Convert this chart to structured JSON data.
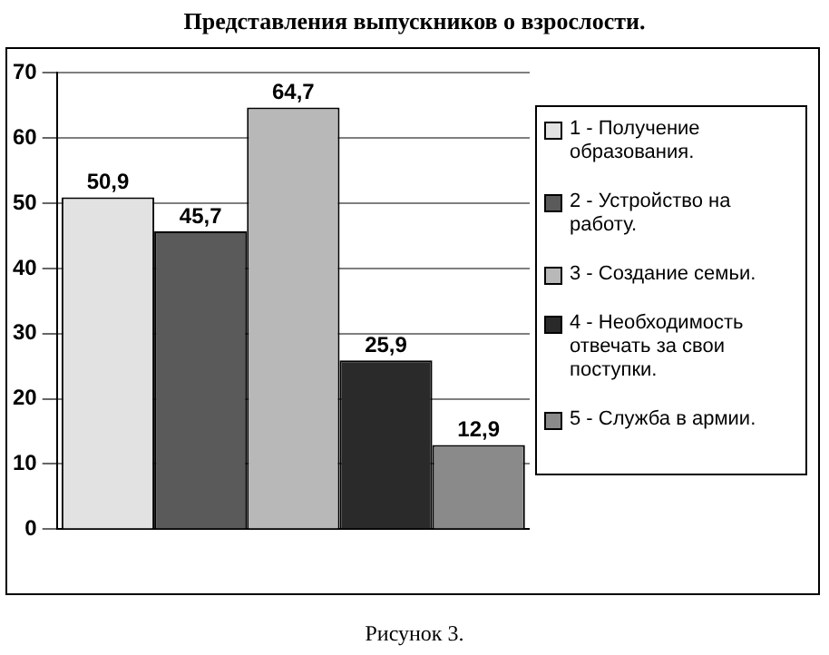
{
  "chart_data": {
    "type": "bar",
    "title": "Представления выпускников о взрослости.",
    "categories": [
      null
    ],
    "series": [
      {
        "name": "1 - Получение образования.",
        "color": "#e2e2e2",
        "values": [
          50.9
        ],
        "value_labels": [
          "50,9"
        ]
      },
      {
        "name": "2 - Устройство на работу.",
        "color": "#5a5a5a",
        "values": [
          45.7
        ],
        "value_labels": [
          "45,7"
        ]
      },
      {
        "name": "3 - Создание семьи.",
        "color": "#b8b8b8",
        "values": [
          64.7
        ],
        "value_labels": [
          "64,7"
        ]
      },
      {
        "name": "4 - Необходимость отвечать за свои поступки.",
        "color": "#2a2a2a",
        "values": [
          25.9
        ],
        "value_labels": [
          "25,9"
        ]
      },
      {
        "name": "5 - Служба в армии.",
        "color": "#8a8a8a",
        "values": [
          12.9
        ],
        "value_labels": [
          "12,9"
        ]
      }
    ],
    "ylim": [
      0,
      70
    ],
    "yticks": [
      0,
      10,
      20,
      30,
      40,
      50,
      60,
      70
    ],
    "grid": "y",
    "legend": "right",
    "annotations": [
      "Рисунок 3."
    ]
  }
}
